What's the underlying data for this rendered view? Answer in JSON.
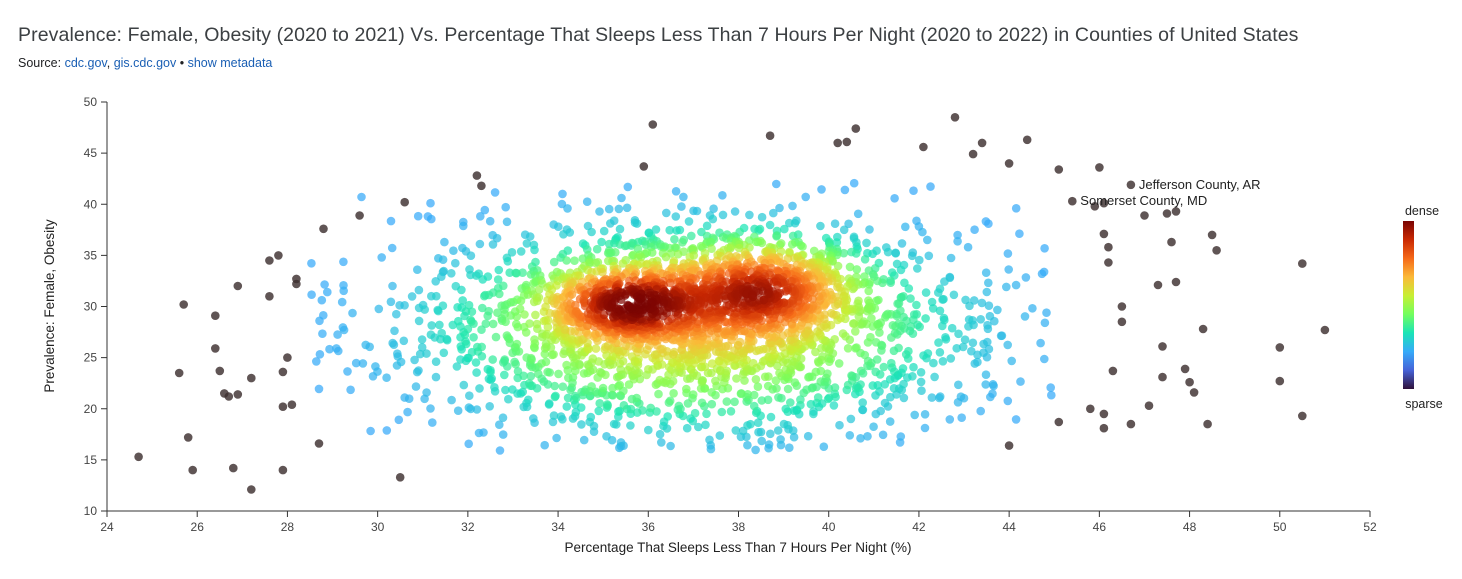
{
  "header": {
    "title": "Prevalence: Female, Obesity (2020 to 2021) Vs. Percentage That Sleeps Less Than 7 Hours Per Night (2020 to 2022) in Counties of United States",
    "source_label": "Source:",
    "source_link_1": "cdc.gov",
    "source_sep": ",",
    "source_link_2": "gis.cdc.gov",
    "source_bullet": "•",
    "metadata_link": "show metadata"
  },
  "colors": {
    "link": "#1a5fb4",
    "sparse_points": "#3d2f2f",
    "colormap": [
      "#30123b",
      "#4662d7",
      "#36aaf9",
      "#1ae4b6",
      "#72fe5e",
      "#c7ef34",
      "#fbb938",
      "#f56918",
      "#c92903",
      "#7a0403"
    ]
  },
  "legend": {
    "dense_label": "dense",
    "sparse_label": "sparse"
  },
  "chart_data": {
    "type": "scatter",
    "xlabel": "Percentage That Sleeps Less Than 7 Hours Per Night (%)",
    "ylabel": "Prevalence: Female, Obesity",
    "xlim": [
      24,
      52
    ],
    "ylim": [
      10,
      50
    ],
    "xticks": [
      24,
      26,
      28,
      30,
      32,
      34,
      36,
      38,
      40,
      42,
      44,
      46,
      48,
      50,
      52
    ],
    "yticks": [
      10,
      15,
      20,
      25,
      30,
      35,
      40,
      45,
      50
    ],
    "grid": false,
    "color_encoding": "point density",
    "annotations": [
      {
        "label": "Jefferson County, AR",
        "x": 46.7,
        "y": 41.9
      },
      {
        "label": "Somerset County, MD",
        "x": 45.4,
        "y": 40.3
      }
    ],
    "sparse_points": [
      [
        24.7,
        15.3
      ],
      [
        25.6,
        23.5
      ],
      [
        25.7,
        30.2
      ],
      [
        25.8,
        17.2
      ],
      [
        25.9,
        14.0
      ],
      [
        26.4,
        29.1
      ],
      [
        26.4,
        25.9
      ],
      [
        26.5,
        23.7
      ],
      [
        26.6,
        21.5
      ],
      [
        26.7,
        21.2
      ],
      [
        26.8,
        14.2
      ],
      [
        26.9,
        32.0
      ],
      [
        26.9,
        21.4
      ],
      [
        27.2,
        23.0
      ],
      [
        27.2,
        12.1
      ],
      [
        27.6,
        34.5
      ],
      [
        27.6,
        31.0
      ],
      [
        27.8,
        35.0
      ],
      [
        27.9,
        23.6
      ],
      [
        27.9,
        20.2
      ],
      [
        27.9,
        14.0
      ],
      [
        28.0,
        25.0
      ],
      [
        28.1,
        20.4
      ],
      [
        28.2,
        32.7
      ],
      [
        28.2,
        32.2
      ],
      [
        28.7,
        16.6
      ],
      [
        28.8,
        37.6
      ],
      [
        29.6,
        38.9
      ],
      [
        30.5,
        13.3
      ],
      [
        30.6,
        40.2
      ],
      [
        32.2,
        42.8
      ],
      [
        32.3,
        41.8
      ],
      [
        36.1,
        47.8
      ],
      [
        35.9,
        43.7
      ],
      [
        38.7,
        46.7
      ],
      [
        40.2,
        46.0
      ],
      [
        40.4,
        46.1
      ],
      [
        40.6,
        47.4
      ],
      [
        42.1,
        45.6
      ],
      [
        42.8,
        48.5
      ],
      [
        43.2,
        44.9
      ],
      [
        43.4,
        46.0
      ],
      [
        44.0,
        44.0
      ],
      [
        44.4,
        46.3
      ],
      [
        44.0,
        16.4
      ],
      [
        45.1,
        43.4
      ],
      [
        45.1,
        18.7
      ],
      [
        45.8,
        20.0
      ],
      [
        46.0,
        43.6
      ],
      [
        46.1,
        40.1
      ],
      [
        46.1,
        37.1
      ],
      [
        46.2,
        35.8
      ],
      [
        46.2,
        34.3
      ],
      [
        46.1,
        19.5
      ],
      [
        46.1,
        18.1
      ],
      [
        46.3,
        23.7
      ],
      [
        46.5,
        30.0
      ],
      [
        46.5,
        28.5
      ],
      [
        46.7,
        18.5
      ],
      [
        46.7,
        41.9
      ],
      [
        47.0,
        38.9
      ],
      [
        47.1,
        20.3
      ],
      [
        47.3,
        32.1
      ],
      [
        47.4,
        26.1
      ],
      [
        47.4,
        23.1
      ],
      [
        47.5,
        39.1
      ],
      [
        47.6,
        36.3
      ],
      [
        47.7,
        39.3
      ],
      [
        47.7,
        32.4
      ],
      [
        47.9,
        23.9
      ],
      [
        48.0,
        22.6
      ],
      [
        48.1,
        21.6
      ],
      [
        48.3,
        27.8
      ],
      [
        48.4,
        18.5
      ],
      [
        48.5,
        37.0
      ],
      [
        48.6,
        35.5
      ],
      [
        50.0,
        26.0
      ],
      [
        50.0,
        22.7
      ],
      [
        50.5,
        34.2
      ],
      [
        50.5,
        19.3
      ],
      [
        51.0,
        27.7
      ],
      [
        45.4,
        40.3
      ],
      [
        45.9,
        39.8
      ]
    ],
    "density_clusters": [
      {
        "x": 35.6,
        "y": 30.3,
        "sx": 1.0,
        "sy": 2.0,
        "weight": 0.14
      },
      {
        "x": 38.5,
        "y": 31.6,
        "sx": 1.1,
        "sy": 2.5,
        "weight": 0.16
      },
      {
        "x": 37.0,
        "y": 28.0,
        "sx": 3.3,
        "sy": 5.6,
        "weight": 0.7
      }
    ],
    "point_count": 3000,
    "dense_x_range": [
      28.5,
      45.0
    ],
    "dense_y_range": [
      15.8,
      42.5
    ]
  }
}
